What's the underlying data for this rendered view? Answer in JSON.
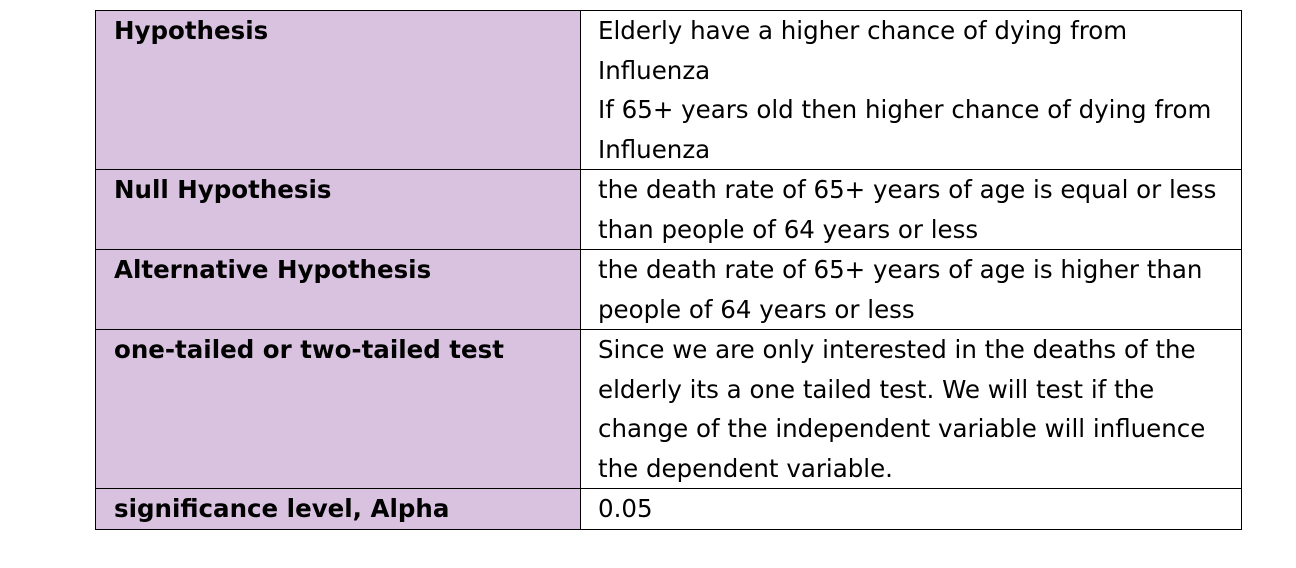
{
  "table": {
    "rows": [
      {
        "label": "Hypothesis",
        "lines": [
          "Elderly have a higher chance of dying from",
          "Influenza",
          "If 65+ years old then higher chance of dying from",
          "Influenza"
        ]
      },
      {
        "label": "Null Hypothesis",
        "lines": [
          "the death rate of 65+ years of age is equal or less",
          "than people of 64 years or less"
        ]
      },
      {
        "label": "Alternative Hypothesis",
        "lines": [
          "the death rate of 65+ years of age is higher than",
          "people of 64 years or less"
        ]
      },
      {
        "label": "one-tailed or two-tailed test",
        "lines": [
          "Since we are only interested in the deaths of the",
          "elderly its a one tailed test. We will test if the",
          "change of the independent variable will influence",
          "the dependent variable."
        ]
      },
      {
        "label": "significance level, Alpha",
        "lines": [
          "0.05"
        ]
      }
    ]
  }
}
